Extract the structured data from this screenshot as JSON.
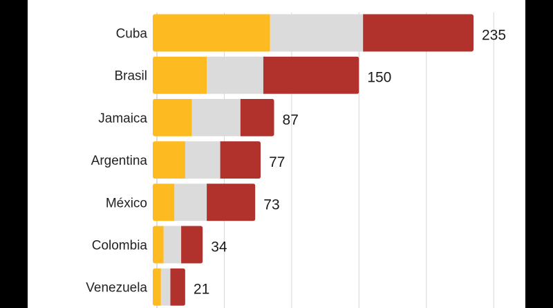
{
  "chart_data": {
    "type": "bar",
    "orientation": "horizontal",
    "stacked": true,
    "categories": [
      "Cuba",
      "Brasil",
      "Jamaica",
      "Argentina",
      "México",
      "Colombia",
      "Venezuela"
    ],
    "series": [
      {
        "values": [
          84,
          37,
          26,
          21,
          13,
          5,
          3
        ],
        "color": "#FDBA21"
      },
      {
        "values": [
          69,
          42,
          36,
          26,
          24,
          13,
          7
        ],
        "color": "#DBDBDB"
      },
      {
        "values": [
          82,
          71,
          25,
          30,
          36,
          16,
          11
        ],
        "color": "#B1322C"
      }
    ],
    "totals": [
      "235",
      "150",
      "87",
      "77",
      "73",
      "34",
      "21"
    ],
    "xlim": [
      0,
      250
    ],
    "grid": true,
    "title": "",
    "xlabel": "",
    "ylabel": ""
  }
}
